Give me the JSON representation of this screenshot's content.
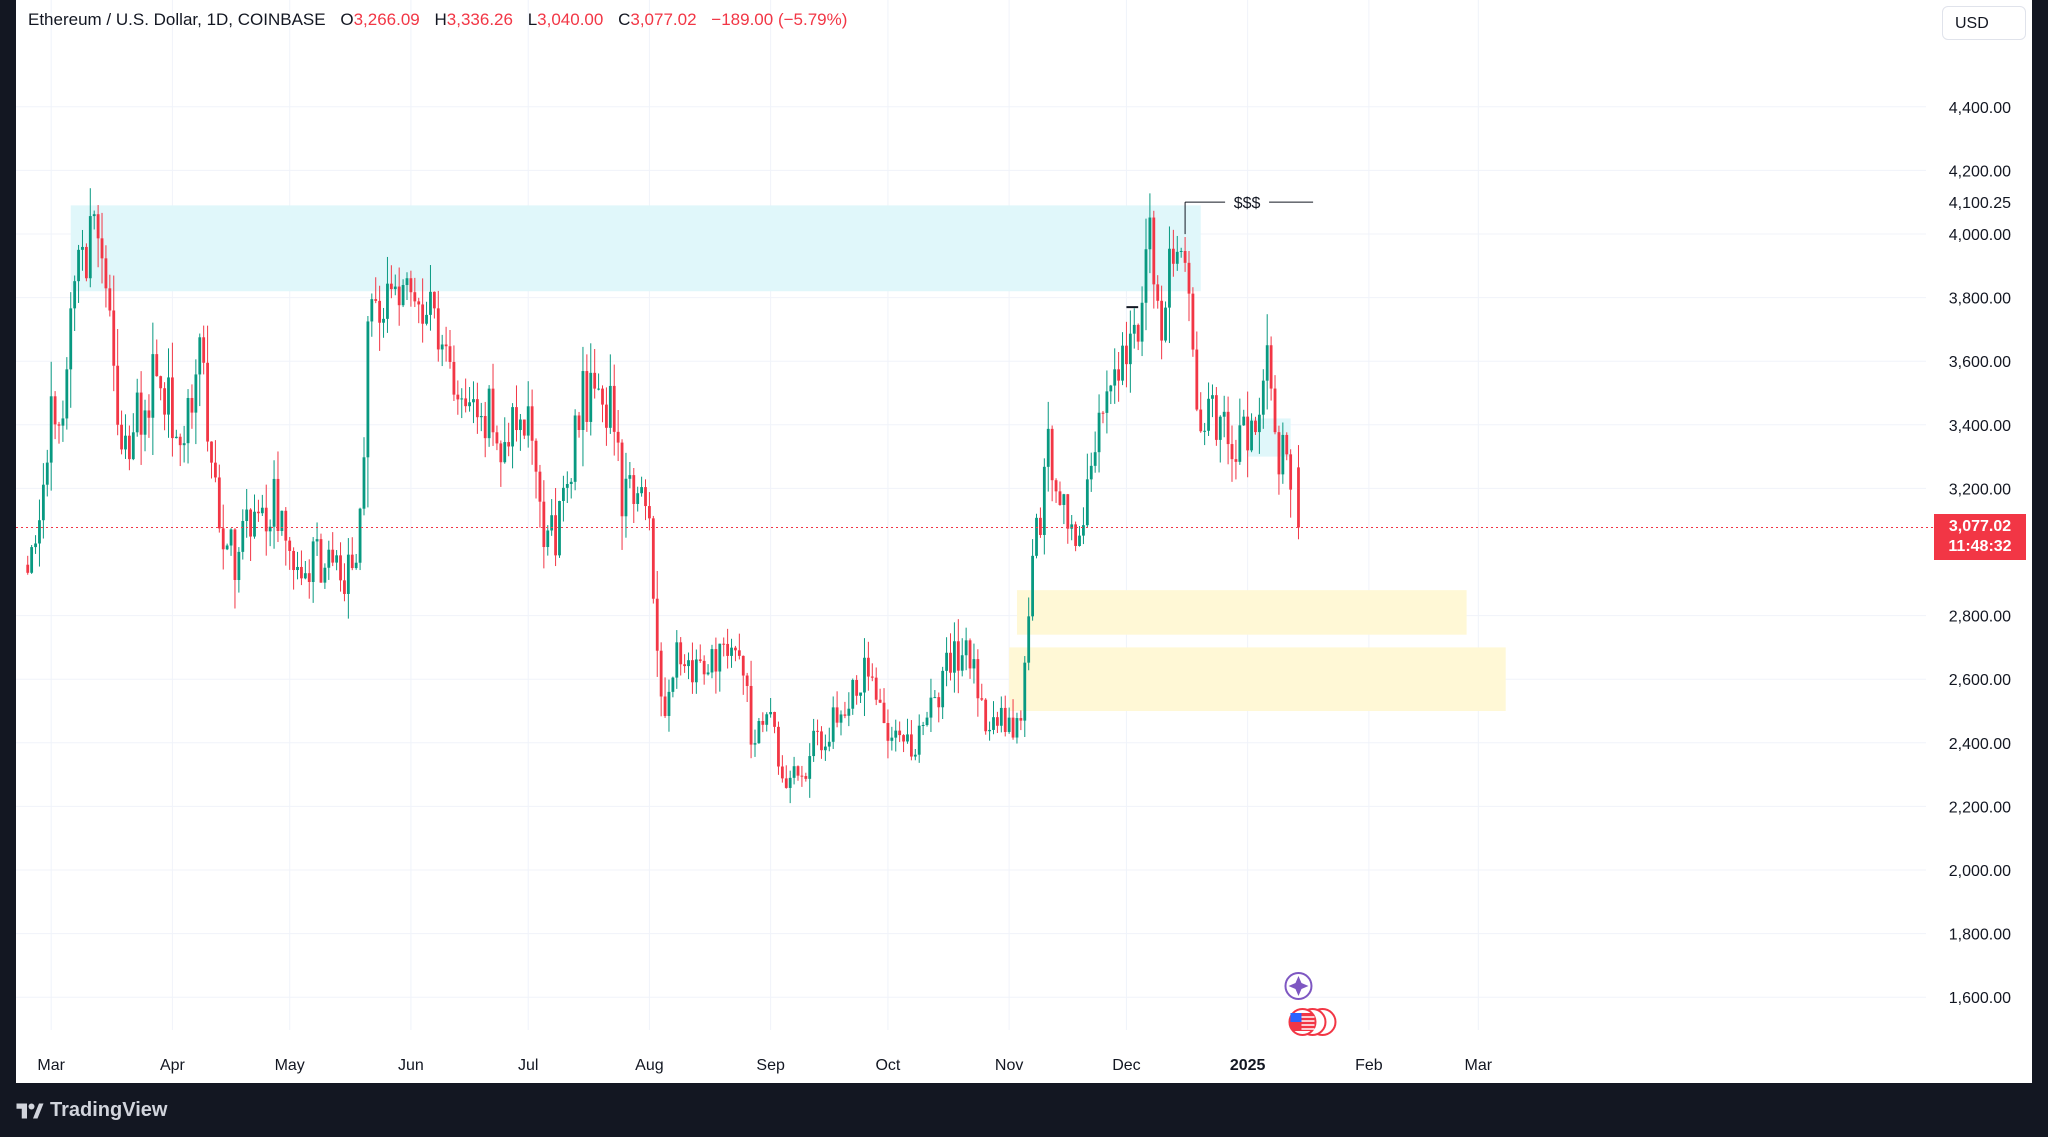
{
  "legend": {
    "symbol": "Ethereum / U.S. Dollar, 1D, COINBASE",
    "o_label": "O",
    "o_value": "3,266.09",
    "h_label": "H",
    "h_value": "3,336.26",
    "l_label": "L",
    "l_value": "3,040.00",
    "c_label": "C",
    "c_value": "3,077.02",
    "change": "−189.00 (−5.79%)"
  },
  "currency": "USD",
  "price_tag": {
    "price": "3,077.02",
    "countdown": "11:48:32"
  },
  "brand": "TradingView",
  "annotation_text": "$$$",
  "colors": {
    "up": "#089981",
    "down": "#f23645",
    "supply_zone": "#e0f7fa",
    "demand_zone": "#fff8d6"
  },
  "chart_data": {
    "type": "candlestick",
    "y_tick_labels": [
      "1,600.00",
      "1,800.00",
      "2,000.00",
      "2,200.00",
      "2,400.00",
      "2,600.00",
      "2,800.00",
      "3,200.00",
      "3,400.00",
      "3,600.00",
      "3,800.00",
      "4,000.00",
      "4,200.00",
      "4,400.00"
    ],
    "y_ticks": [
      1600,
      1800,
      2000,
      2200,
      2400,
      2600,
      2800,
      3200,
      3400,
      3600,
      3800,
      4000,
      4200,
      4400
    ],
    "ylim": [
      1480,
      4800
    ],
    "x_labels": [
      "Mar",
      "Apr",
      "May",
      "Jun",
      "Jul",
      "Aug",
      "Sep",
      "Oct",
      "Nov",
      "Dec",
      "2025",
      "Feb",
      "Mar"
    ],
    "x_label_dates": [
      "2024-03-01",
      "2024-04-01",
      "2024-05-01",
      "2024-06-01",
      "2024-07-01",
      "2024-08-01",
      "2024-09-01",
      "2024-10-01",
      "2024-11-01",
      "2024-12-01",
      "2025-01-01",
      "2025-02-01",
      "2025-03-01"
    ],
    "marked_level": {
      "price": 4100.25,
      "label": "4,100.25"
    },
    "current_price": 3077.02,
    "zones": [
      {
        "kind": "supply",
        "from": "2024-03-06",
        "to": "2024-12-20",
        "low": 3820,
        "high": 4090
      },
      {
        "kind": "supply-small",
        "from": "2025-01-01",
        "to": "2025-01-12",
        "low": 3300,
        "high": 3420
      },
      {
        "kind": "demand",
        "from": "2024-11-03",
        "to": "2025-02-26",
        "low": 2740,
        "high": 2880
      },
      {
        "kind": "demand",
        "from": "2024-11-01",
        "to": "2025-03-08",
        "low": 2500,
        "high": 2700
      }
    ],
    "anchors": [
      {
        "d": "2024-02-24",
        "p": 2960
      },
      {
        "d": "2024-03-01",
        "p": 3400
      },
      {
        "d": "2024-03-05",
        "p": 3550
      },
      {
        "d": "2024-03-08",
        "p": 3900
      },
      {
        "d": "2024-03-12",
        "p": 4040
      },
      {
        "d": "2024-03-16",
        "p": 3800
      },
      {
        "d": "2024-03-19",
        "p": 3250
      },
      {
        "d": "2024-03-24",
        "p": 3450
      },
      {
        "d": "2024-03-28",
        "p": 3580
      },
      {
        "d": "2024-04-04",
        "p": 3320
      },
      {
        "d": "2024-04-08",
        "p": 3650
      },
      {
        "d": "2024-04-13",
        "p": 3100
      },
      {
        "d": "2024-04-17",
        "p": 2980
      },
      {
        "d": "2024-04-20",
        "p": 3100
      },
      {
        "d": "2024-04-27",
        "p": 3150
      },
      {
        "d": "2024-05-01",
        "p": 2950
      },
      {
        "d": "2024-05-08",
        "p": 3000
      },
      {
        "d": "2024-05-14",
        "p": 2900
      },
      {
        "d": "2024-05-19",
        "p": 3080
      },
      {
        "d": "2024-05-21",
        "p": 3700
      },
      {
        "d": "2024-05-27",
        "p": 3880
      },
      {
        "d": "2024-06-03",
        "p": 3800
      },
      {
        "d": "2024-06-06",
        "p": 3780
      },
      {
        "d": "2024-06-12",
        "p": 3500
      },
      {
        "d": "2024-06-18",
        "p": 3490
      },
      {
        "d": "2024-06-24",
        "p": 3350
      },
      {
        "d": "2024-07-01",
        "p": 3440
      },
      {
        "d": "2024-07-05",
        "p": 3000
      },
      {
        "d": "2024-07-08",
        "p": 3050
      },
      {
        "d": "2024-07-15",
        "p": 3480
      },
      {
        "d": "2024-07-22",
        "p": 3450
      },
      {
        "d": "2024-07-25",
        "p": 3180
      },
      {
        "d": "2024-07-31",
        "p": 3200
      },
      {
        "d": "2024-08-05",
        "p": 2450
      },
      {
        "d": "2024-08-08",
        "p": 2650
      },
      {
        "d": "2024-08-14",
        "p": 2650
      },
      {
        "d": "2024-08-23",
        "p": 2750
      },
      {
        "d": "2024-08-27",
        "p": 2450
      },
      {
        "d": "2024-09-01",
        "p": 2450
      },
      {
        "d": "2024-09-06",
        "p": 2250
      },
      {
        "d": "2024-09-12",
        "p": 2380
      },
      {
        "d": "2024-09-20",
        "p": 2550
      },
      {
        "d": "2024-09-27",
        "p": 2650
      },
      {
        "d": "2024-10-03",
        "p": 2380
      },
      {
        "d": "2024-10-10",
        "p": 2400
      },
      {
        "d": "2024-10-15",
        "p": 2600
      },
      {
        "d": "2024-10-21",
        "p": 2700
      },
      {
        "d": "2024-10-25",
        "p": 2500
      },
      {
        "d": "2024-11-04",
        "p": 2420
      },
      {
        "d": "2024-11-06",
        "p": 2850
      },
      {
        "d": "2024-11-11",
        "p": 3300
      },
      {
        "d": "2024-11-15",
        "p": 3100
      },
      {
        "d": "2024-11-20",
        "p": 3100
      },
      {
        "d": "2024-11-24",
        "p": 3350
      },
      {
        "d": "2024-11-29",
        "p": 3600
      },
      {
        "d": "2024-12-04",
        "p": 3650
      },
      {
        "d": "2024-12-07",
        "p": 3950
      },
      {
        "d": "2024-12-09",
        "p": 3700
      },
      {
        "d": "2024-12-12",
        "p": 3900
      },
      {
        "d": "2024-12-16",
        "p": 3950
      },
      {
        "d": "2024-12-19",
        "p": 3500
      },
      {
        "d": "2024-12-23",
        "p": 3400
      },
      {
        "d": "2024-12-28",
        "p": 3350
      },
      {
        "d": "2025-01-02",
        "p": 3400
      },
      {
        "d": "2025-01-06",
        "p": 3650
      },
      {
        "d": "2025-01-08",
        "p": 3350
      },
      {
        "d": "2025-01-11",
        "p": 3280
      },
      {
        "d": "2025-01-13",
        "p": 3266
      }
    ],
    "last_candle": {
      "d": "2025-01-14",
      "o": 3266.09,
      "h": 3336.26,
      "l": 3040.0,
      "c": 3077.02
    }
  }
}
